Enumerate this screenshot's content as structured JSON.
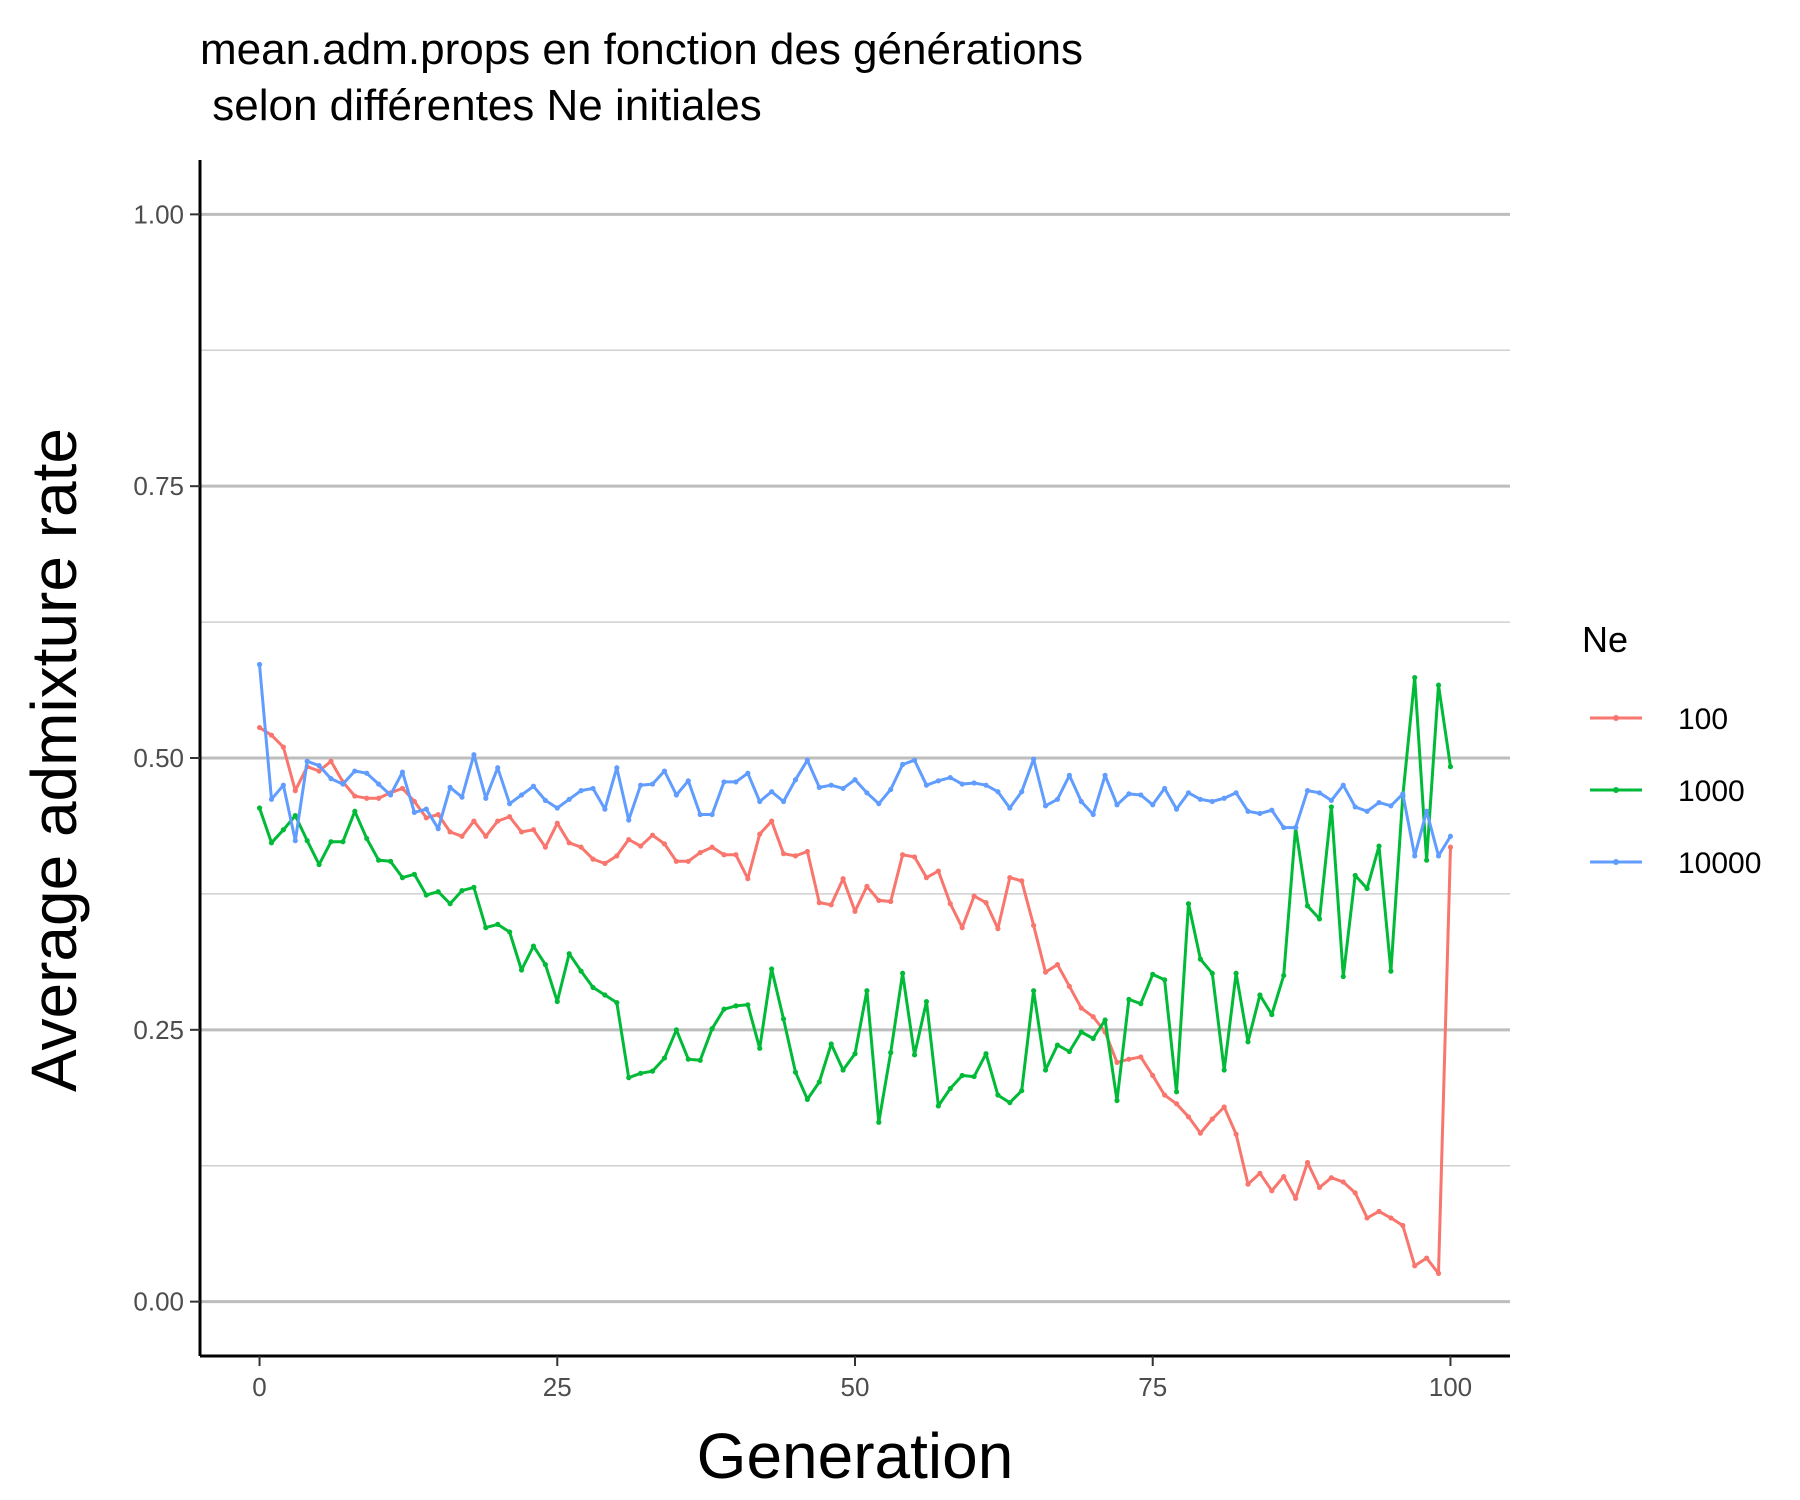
{
  "chart_data": {
    "type": "line",
    "title_line1": "mean.adm.props en fonction des générations",
    "title_line2": " selon différentes Ne initiales",
    "xlabel": "Generation",
    "ylabel": "Average admixture rate",
    "xlim": [
      -5,
      105
    ],
    "ylim": [
      -0.05,
      1.05
    ],
    "x_ticks": [
      0,
      25,
      50,
      75,
      100
    ],
    "x_tick_labels": [
      "0",
      "25",
      "50",
      "75",
      "100"
    ],
    "y_ticks": [
      0,
      0.25,
      0.5,
      0.75,
      1
    ],
    "y_tick_labels": [
      "0.00",
      "0.25",
      "0.50",
      "0.75",
      "1.00"
    ],
    "y_minor_ticks": [
      0.125,
      0.375,
      0.625,
      0.875
    ],
    "grid": "horizontal",
    "legend_title": "Ne",
    "legend_position": "right",
    "x_start": 0,
    "series": [
      {
        "name": "100",
        "color": "#f8766d",
        "values": [
          0.528,
          0.521,
          0.51,
          0.47,
          0.492,
          0.488,
          0.497,
          0.478,
          0.465,
          0.463,
          0.463,
          0.468,
          0.472,
          0.46,
          0.445,
          0.448,
          0.432,
          0.428,
          0.442,
          0.428,
          0.442,
          0.446,
          0.432,
          0.434,
          0.418,
          0.44,
          0.422,
          0.418,
          0.407,
          0.403,
          0.41,
          0.425,
          0.419,
          0.429,
          0.421,
          0.405,
          0.405,
          0.413,
          0.418,
          0.411,
          0.411,
          0.389,
          0.43,
          0.442,
          0.412,
          0.41,
          0.414,
          0.367,
          0.365,
          0.389,
          0.359,
          0.382,
          0.369,
          0.368,
          0.411,
          0.409,
          0.39,
          0.396,
          0.366,
          0.344,
          0.373,
          0.367,
          0.343,
          0.39,
          0.387,
          0.346,
          0.303,
          0.31,
          0.29,
          0.27,
          0.262,
          0.248,
          0.22,
          0.223,
          0.225,
          0.208,
          0.19,
          0.182,
          0.17,
          0.155,
          0.168,
          0.179,
          0.154,
          0.108,
          0.118,
          0.102,
          0.115,
          0.095,
          0.128,
          0.105,
          0.114,
          0.11,
          0.1,
          0.077,
          0.083,
          0.077,
          0.07,
          0.033,
          0.04,
          0.026,
          0.418
        ]
      },
      {
        "name": "1000",
        "color": "#00ba38",
        "values": [
          0.454,
          0.422,
          0.434,
          0.447,
          0.424,
          0.402,
          0.423,
          0.423,
          0.451,
          0.426,
          0.406,
          0.405,
          0.39,
          0.393,
          0.374,
          0.377,
          0.366,
          0.378,
          0.381,
          0.344,
          0.347,
          0.34,
          0.305,
          0.327,
          0.31,
          0.276,
          0.32,
          0.304,
          0.289,
          0.282,
          0.275,
          0.206,
          0.21,
          0.212,
          0.224,
          0.25,
          0.223,
          0.222,
          0.251,
          0.269,
          0.272,
          0.273,
          0.233,
          0.306,
          0.26,
          0.211,
          0.186,
          0.202,
          0.237,
          0.213,
          0.228,
          0.286,
          0.165,
          0.229,
          0.302,
          0.227,
          0.276,
          0.18,
          0.196,
          0.208,
          0.207,
          0.228,
          0.19,
          0.183,
          0.194,
          0.286,
          0.213,
          0.236,
          0.23,
          0.248,
          0.242,
          0.259,
          0.185,
          0.278,
          0.274,
          0.301,
          0.296,
          0.193,
          0.366,
          0.315,
          0.302,
          0.213,
          0.302,
          0.239,
          0.282,
          0.264,
          0.3,
          0.436,
          0.364,
          0.352,
          0.455,
          0.299,
          0.392,
          0.38,
          0.419,
          0.304,
          0.465,
          0.574,
          0.406,
          0.567,
          0.492
        ]
      },
      {
        "name": "10000",
        "color": "#619cff",
        "values": [
          0.586,
          0.462,
          0.475,
          0.424,
          0.497,
          0.493,
          0.481,
          0.476,
          0.488,
          0.486,
          0.476,
          0.466,
          0.487,
          0.45,
          0.453,
          0.435,
          0.473,
          0.464,
          0.503,
          0.463,
          0.491,
          0.458,
          0.466,
          0.474,
          0.461,
          0.454,
          0.462,
          0.47,
          0.472,
          0.453,
          0.491,
          0.443,
          0.475,
          0.476,
          0.488,
          0.466,
          0.479,
          0.448,
          0.448,
          0.478,
          0.478,
          0.486,
          0.46,
          0.469,
          0.46,
          0.48,
          0.498,
          0.473,
          0.475,
          0.472,
          0.48,
          0.468,
          0.458,
          0.471,
          0.494,
          0.498,
          0.475,
          0.479,
          0.482,
          0.476,
          0.477,
          0.475,
          0.469,
          0.454,
          0.469,
          0.499,
          0.456,
          0.462,
          0.484,
          0.46,
          0.448,
          0.484,
          0.457,
          0.467,
          0.466,
          0.457,
          0.472,
          0.453,
          0.468,
          0.462,
          0.46,
          0.463,
          0.468,
          0.451,
          0.449,
          0.452,
          0.436,
          0.436,
          0.47,
          0.468,
          0.461,
          0.475,
          0.455,
          0.451,
          0.459,
          0.456,
          0.467,
          0.41,
          0.451,
          0.41,
          0.428
        ]
      }
    ]
  }
}
